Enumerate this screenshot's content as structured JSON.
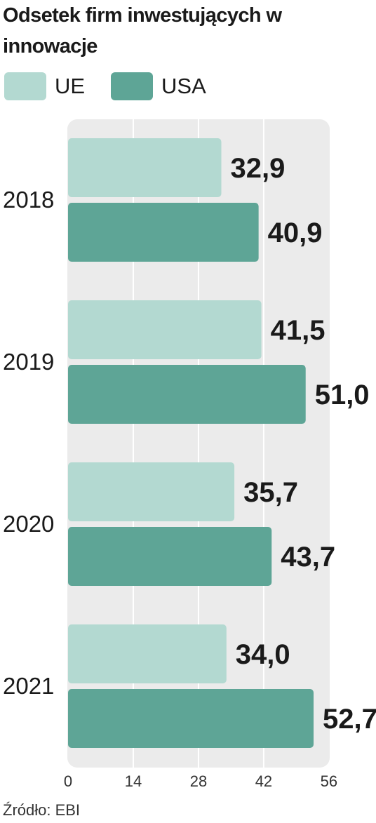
{
  "title": "Odsetek firm inwestujących w innowacje",
  "legend": [
    {
      "label": "UE",
      "color": "#b3d9d1"
    },
    {
      "label": "USA",
      "color": "#5ea596"
    }
  ],
  "source": "Źródło: EBI",
  "colors": {
    "panel": "#ebebeb",
    "gridline": "#ffffff",
    "ue": "#b3d9d1",
    "usa": "#5ea596",
    "text": "#1a1a1a"
  },
  "chart_data": {
    "type": "bar",
    "orientation": "horizontal",
    "title": "Odsetek firm inwestujących w innowacje",
    "categories": [
      "2018",
      "2019",
      "2020",
      "2021"
    ],
    "series": [
      {
        "name": "UE",
        "values": [
          32.9,
          41.5,
          35.7,
          34.0
        ],
        "labels": [
          "32,9",
          "41,5",
          "35,7",
          "34,0"
        ]
      },
      {
        "name": "USA",
        "values": [
          40.9,
          51.0,
          43.7,
          52.7
        ],
        "labels": [
          "40,9",
          "51,0",
          "43,7",
          "52,7"
        ]
      }
    ],
    "xlim": [
      0,
      56
    ],
    "xticks": [
      0,
      14,
      28,
      42,
      56
    ],
    "xlabel": "",
    "ylabel": "",
    "grid": true,
    "legend_position": "top-left"
  }
}
